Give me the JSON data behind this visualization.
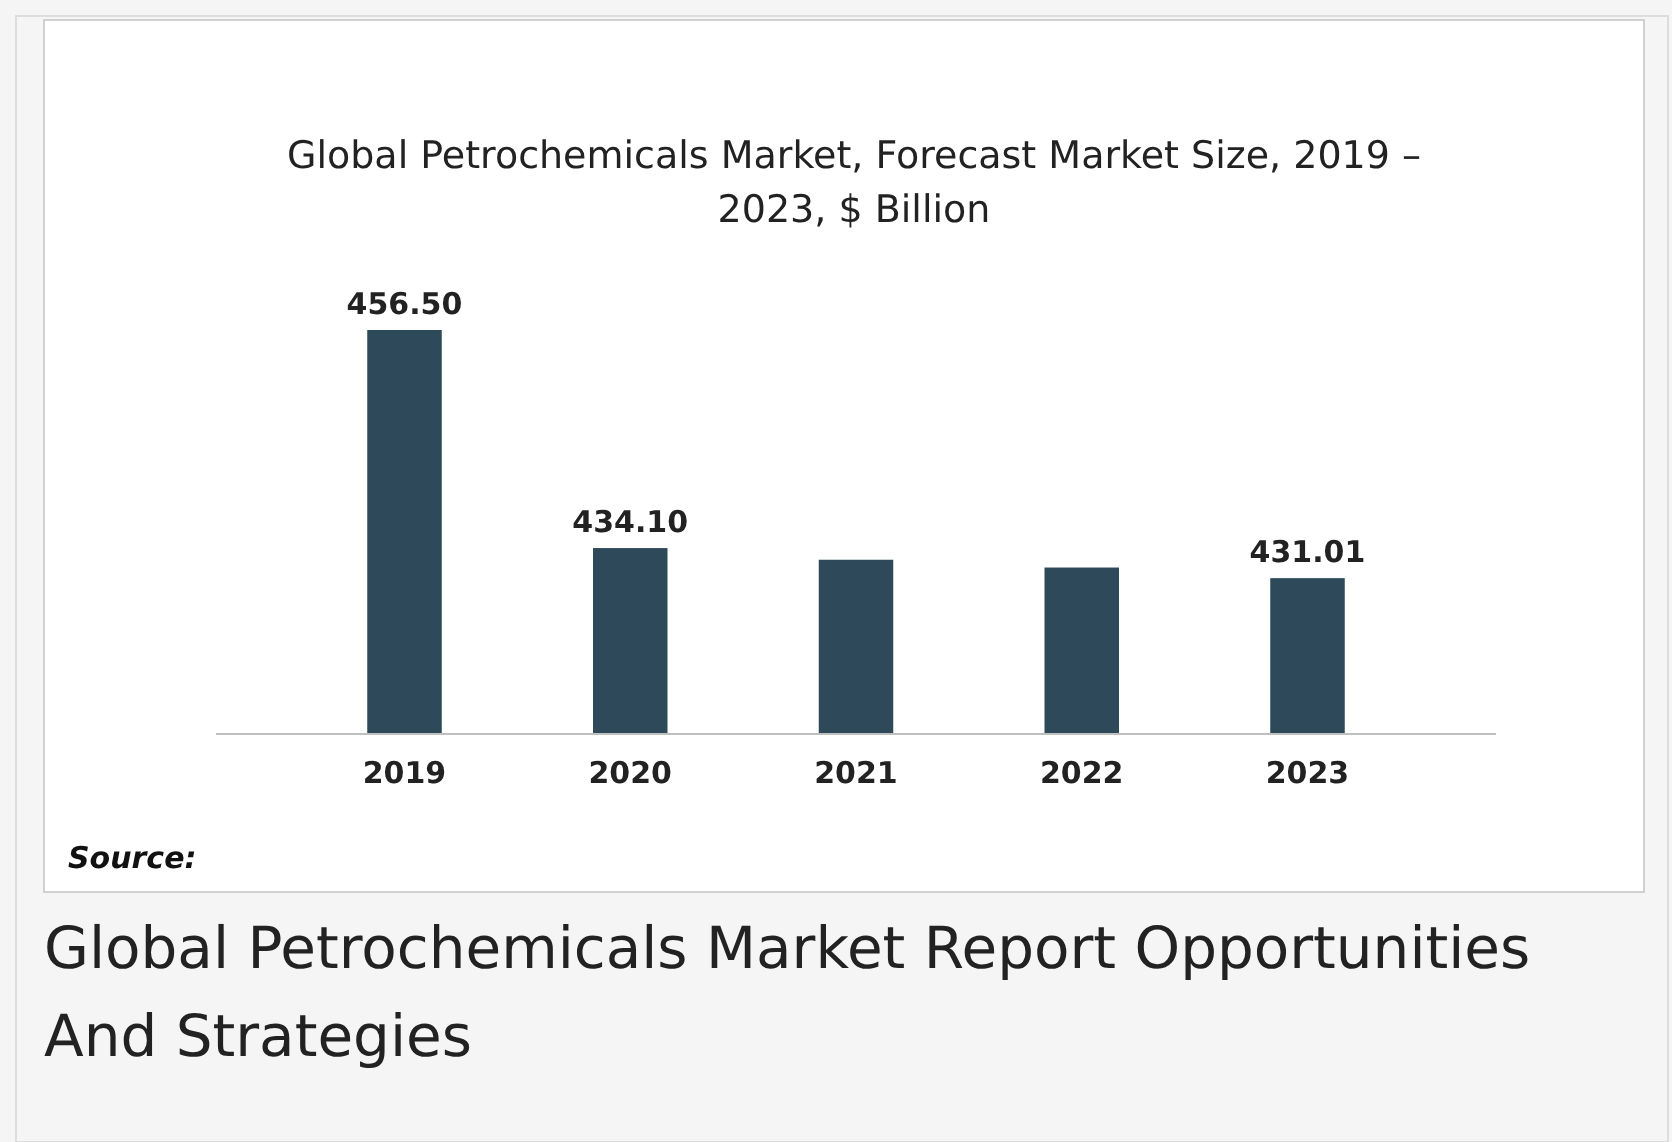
{
  "chart_data": {
    "type": "bar",
    "title": "Global Petrochemicals Market, Forecast Market Size, 2019 – 2023, $ Billion",
    "categories": [
      "2019",
      "2020",
      "2021",
      "2022",
      "2023"
    ],
    "values": [
      456.5,
      434.1,
      432.9,
      432.1,
      431.01
    ],
    "value_labels": [
      "456.50",
      "434.10",
      null,
      null,
      "431.01"
    ],
    "color": "#2e4a5a",
    "ylim": [
      415,
      456.5
    ],
    "tick_labels": "x",
    "annotations": [
      "Source:",
      "Global Petrochemicals Market Report Opportunities And Strategies"
    ]
  }
}
